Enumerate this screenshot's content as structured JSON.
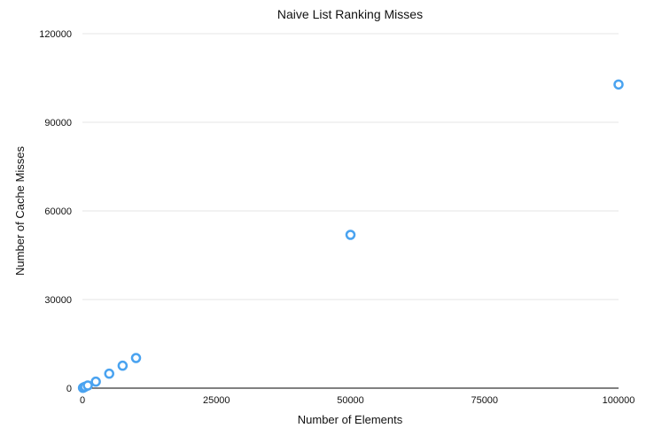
{
  "chart_data": {
    "type": "scatter",
    "title": "Naive List Ranking Misses",
    "xlabel": "Number of Elements",
    "ylabel": "Number of Cache Misses",
    "xlim": [
      0,
      100000
    ],
    "ylim": [
      0,
      120000
    ],
    "xticks": [
      0,
      25000,
      50000,
      75000,
      100000
    ],
    "yticks": [
      0,
      30000,
      60000,
      90000,
      120000
    ],
    "grid": "horizontal",
    "marker_color": "#4aa3f0",
    "series": [
      {
        "x": [
          100,
          250,
          500,
          1000,
          2500,
          5000,
          7500,
          10000,
          50000,
          100000
        ],
        "y": [
          100,
          250,
          480,
          900,
          2200,
          4900,
          7600,
          10200,
          51900,
          102800
        ]
      }
    ]
  }
}
